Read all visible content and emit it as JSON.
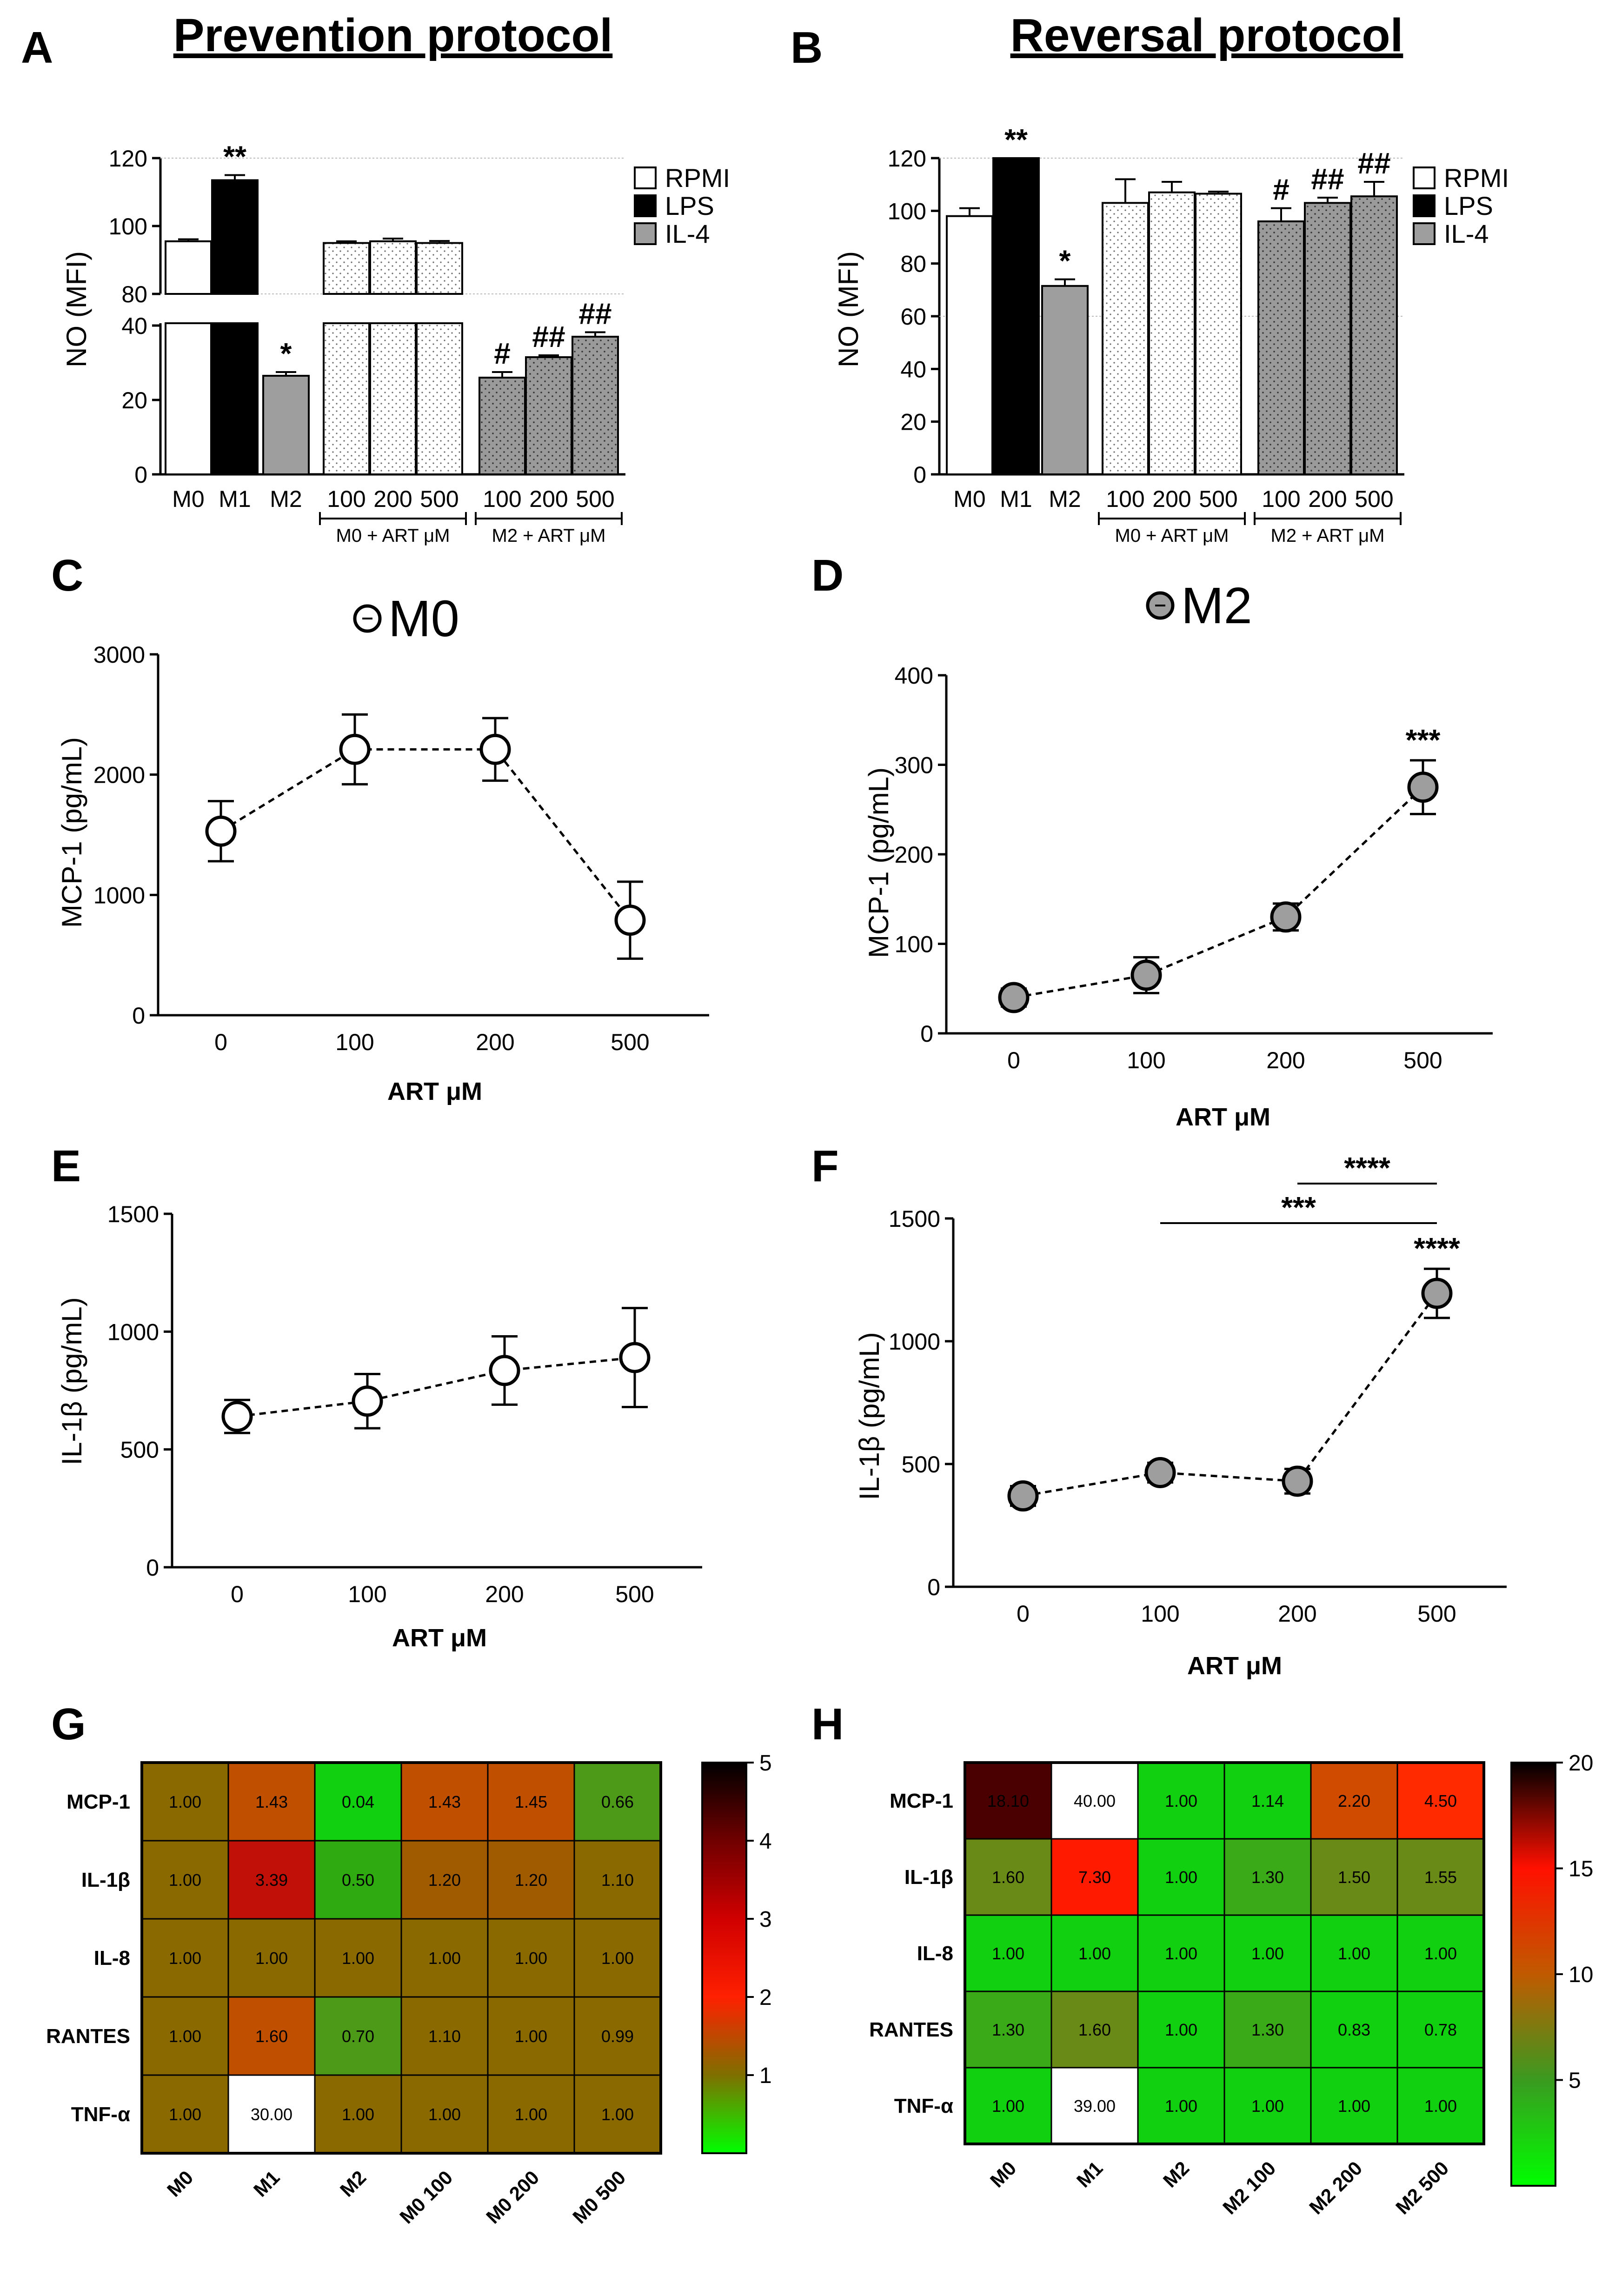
{
  "panels": {
    "A": {
      "label": "A",
      "title": "Prevention protocol"
    },
    "B": {
      "label": "B",
      "title": "Reversal protocol"
    },
    "C": {
      "label": "C"
    },
    "D": {
      "label": "D"
    },
    "E": {
      "label": "E"
    },
    "F": {
      "label": "F"
    },
    "G": {
      "label": "G"
    },
    "H": {
      "label": "H"
    }
  },
  "legend": [
    {
      "name": "RPMI",
      "color": "#ffffff"
    },
    {
      "name": "LPS",
      "color": "#000000"
    },
    {
      "name": "IL-4",
      "color": "#9e9e9e"
    }
  ],
  "chart_data": [
    {
      "id": "A",
      "type": "bar",
      "title": "Prevention protocol",
      "ylabel": "NO (MFI)",
      "broken_axis": {
        "lower": [
          0,
          40
        ],
        "upper": [
          80,
          120
        ]
      },
      "lower_ticks": [
        0,
        20,
        40
      ],
      "upper_ticks": [
        80,
        100,
        120
      ],
      "categories": [
        "M0",
        "M1",
        "M2",
        "100",
        "200",
        "500",
        "100",
        "200",
        "500"
      ],
      "values": [
        95.5,
        113.5,
        26.5,
        95.0,
        95.5,
        95.0,
        26.0,
        31.5,
        37.0
      ],
      "errors": [
        0.6,
        1.5,
        1.0,
        0.5,
        0.8,
        0.6,
        1.5,
        0.5,
        1.2
      ],
      "fills": [
        "white",
        "black",
        "gray",
        "dot-white",
        "dot-white",
        "dot-white",
        "dot-gray",
        "dot-gray",
        "dot-gray"
      ],
      "significance": [
        "",
        "**",
        "*",
        "",
        "",
        "",
        "#",
        "##",
        "##"
      ],
      "groups": [
        {
          "label": "M0 + ART μM",
          "from": 3,
          "to": 5
        },
        {
          "label": "M2 + ART μM",
          "from": 6,
          "to": 8
        }
      ]
    },
    {
      "id": "B",
      "type": "bar",
      "title": "Reversal protocol",
      "ylabel": "NO (MFI)",
      "ylim": [
        0,
        120
      ],
      "ticks": [
        0,
        20,
        40,
        60,
        80,
        100,
        120
      ],
      "categories": [
        "M0",
        "M1",
        "M2",
        "100",
        "200",
        "500",
        "100",
        "200",
        "500"
      ],
      "values": [
        98,
        120,
        71.5,
        103,
        107,
        106.5,
        96,
        103,
        105.5
      ],
      "errors": [
        3,
        0,
        2.5,
        9,
        4,
        0.8,
        5,
        2,
        5.5
      ],
      "fills": [
        "white",
        "black",
        "gray",
        "dot-white",
        "dot-white",
        "dot-white",
        "dot-gray",
        "dot-gray",
        "dot-gray"
      ],
      "significance": [
        "",
        "**",
        "*",
        "",
        "",
        "",
        "#",
        "##",
        "##"
      ],
      "groups": [
        {
          "label": "M0 + ART μM",
          "from": 3,
          "to": 5
        },
        {
          "label": "M2 + ART μM",
          "from": 6,
          "to": 8
        }
      ]
    },
    {
      "id": "C",
      "type": "line",
      "title": "M0",
      "ylabel": "MCP-1 (pg/mL)",
      "xlabel": "ART μM",
      "categories": [
        "0",
        "100",
        "200",
        "500"
      ],
      "values": [
        1530,
        2210,
        2210,
        790
      ],
      "errors": [
        250,
        290,
        260,
        320
      ],
      "ylim": [
        0,
        3000
      ],
      "ticks": [
        0,
        1000,
        2000,
        3000
      ],
      "marker": "open",
      "significance": [
        "",
        "",
        "",
        ""
      ]
    },
    {
      "id": "D",
      "type": "line",
      "title": "M2",
      "ylabel": "MCP-1 (pg/mL)",
      "xlabel": "ART μM",
      "categories": [
        "0",
        "100",
        "200",
        "500"
      ],
      "values": [
        40,
        65,
        130,
        275
      ],
      "errors": [
        10,
        20,
        15,
        30
      ],
      "ylim": [
        0,
        400
      ],
      "ticks": [
        0,
        100,
        200,
        300,
        400
      ],
      "marker": "filled",
      "significance": [
        "",
        "",
        "",
        "***"
      ]
    },
    {
      "id": "E",
      "type": "line",
      "ylabel": "IL-1β (pg/mL)",
      "xlabel": "ART μM",
      "categories": [
        "0",
        "100",
        "200",
        "500"
      ],
      "values": [
        640,
        705,
        835,
        890
      ],
      "errors": [
        70,
        115,
        145,
        210
      ],
      "ylim": [
        0,
        1500
      ],
      "ticks": [
        0,
        500,
        1000,
        1500
      ],
      "marker": "open",
      "significance": [
        "",
        "",
        "",
        ""
      ]
    },
    {
      "id": "F",
      "type": "line",
      "ylabel": "IL-1β (pg/mL)",
      "xlabel": "ART μM",
      "categories": [
        "0",
        "100",
        "200",
        "500"
      ],
      "values": [
        370,
        465,
        430,
        1195
      ],
      "errors": [
        40,
        40,
        50,
        100
      ],
      "ylim": [
        0,
        1500
      ],
      "ticks": [
        0,
        500,
        1000,
        1500
      ],
      "marker": "filled",
      "significance": [
        "",
        "",
        "",
        "****"
      ],
      "brackets": [
        {
          "from": 1,
          "to": 3,
          "label": "***"
        },
        {
          "from": 2,
          "to": 3,
          "label": "****"
        }
      ]
    },
    {
      "id": "G",
      "type": "heatmap",
      "rows": [
        "MCP-1",
        "IL-1β",
        "IL-8",
        "RANTES",
        "TNF-α"
      ],
      "cols": [
        "M0",
        "M1",
        "M2",
        "M0 100",
        "M0 200",
        "M0 500"
      ],
      "values": [
        [
          1.0,
          1.43,
          0.04,
          1.43,
          1.45,
          0.66
        ],
        [
          1.0,
          3.39,
          0.5,
          1.2,
          1.2,
          1.1
        ],
        [
          1.0,
          1.0,
          1.0,
          1.0,
          1.0,
          1.0
        ],
        [
          1.0,
          1.6,
          0.7,
          1.1,
          1.0,
          0.99
        ],
        [
          1.0,
          30.0,
          1.0,
          1.0,
          1.0,
          1.0
        ]
      ],
      "labels": [
        [
          "1.00",
          "1.43",
          "0.04",
          "1.43",
          "1.45",
          "0.66"
        ],
        [
          "1.00",
          "3.39",
          "0.50",
          "1.20",
          "1.20",
          "1.10"
        ],
        [
          "1.00",
          "1.00",
          "1.00",
          "1.00",
          "1.00",
          "1.00"
        ],
        [
          "1.00",
          "1.60",
          "0.70",
          "1.10",
          "1.00",
          "0.99"
        ],
        [
          "1.00",
          "30.00",
          "1.00",
          "1.00",
          "1.00",
          "1.00"
        ]
      ],
      "scale": [
        0,
        5
      ],
      "scale_ticks": [
        1,
        2,
        3,
        4,
        5
      ]
    },
    {
      "id": "H",
      "type": "heatmap",
      "rows": [
        "MCP-1",
        "IL-1β",
        "IL-8",
        "RANTES",
        "TNF-α"
      ],
      "cols": [
        "M0",
        "M1",
        "M2",
        "M2 100",
        "M2 200",
        "M2 500"
      ],
      "values": [
        [
          18.1,
          40.0,
          1.0,
          1.14,
          2.2,
          4.5
        ],
        [
          1.6,
          7.3,
          1.0,
          1.3,
          1.5,
          1.55
        ],
        [
          1.0,
          1.0,
          1.0,
          1.0,
          1.0,
          1.0
        ],
        [
          1.3,
          1.6,
          1.0,
          1.3,
          0.83,
          0.78
        ],
        [
          1.0,
          39.0,
          1.0,
          1.0,
          1.0,
          1.0
        ]
      ],
      "labels": [
        [
          "18.10",
          "40.00",
          "1.00",
          "1.14",
          "2.20",
          "4.50"
        ],
        [
          "1.60",
          "7.30",
          "1.00",
          "1.30",
          "1.50",
          "1.55"
        ],
        [
          "1.00",
          "1.00",
          "1.00",
          "1.00",
          "1.00",
          "1.00"
        ],
        [
          "1.30",
          "1.60",
          "1.00",
          "1.30",
          "0.83",
          "0.78"
        ],
        [
          "1.00",
          "39.00",
          "1.00",
          "1.00",
          "1.00",
          "1.00"
        ]
      ],
      "scale": [
        0,
        20
      ],
      "scale_ticks": [
        5,
        10,
        15,
        20
      ]
    }
  ]
}
